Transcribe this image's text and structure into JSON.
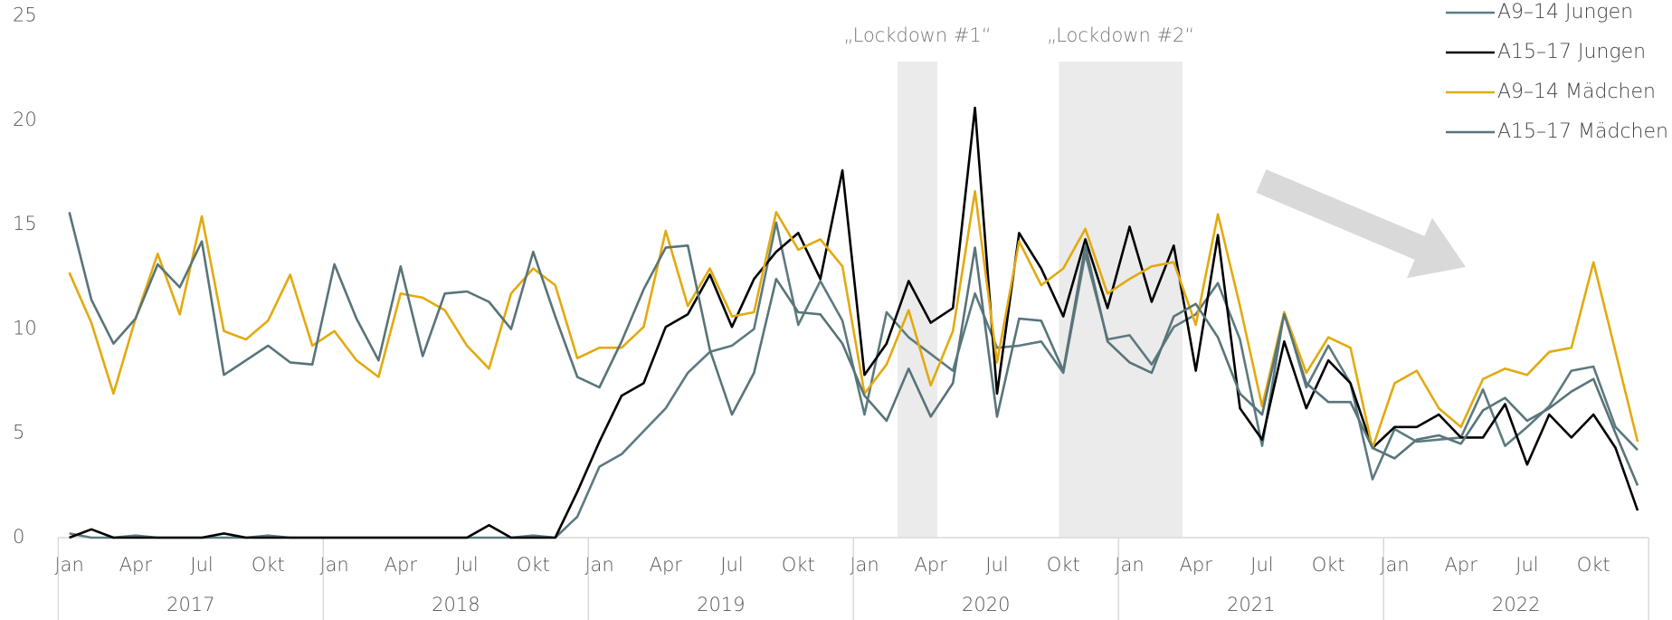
{
  "chart_data": {
    "type": "line",
    "categories": [
      "Jan",
      null,
      null,
      "Apr",
      null,
      null,
      "Jul",
      null,
      null,
      "Okt",
      null,
      null,
      "Jan",
      null,
      null,
      "Apr",
      null,
      null,
      "Jul",
      null,
      null,
      "Okt",
      null,
      null,
      "Jan",
      null,
      null,
      "Apr",
      null,
      null,
      "Jul",
      null,
      null,
      "Okt",
      null,
      null,
      "Jan",
      null,
      null,
      "Apr",
      null,
      null,
      "Jul",
      null,
      null,
      "Okt",
      null,
      null,
      "Jan",
      null,
      null,
      "Apr",
      null,
      null,
      "Jul",
      null,
      null,
      "Okt",
      null,
      null,
      "Jan",
      null,
      null,
      "Apr",
      null,
      null,
      "Jul",
      null,
      null,
      "Okt",
      null,
      null
    ],
    "category_groups": [
      "2017",
      "2018",
      "2019",
      "2020",
      "2021",
      "2022"
    ],
    "ylim": [
      0,
      25
    ],
    "yticks": [
      0,
      5,
      10,
      15,
      20,
      25
    ],
    "grid": false,
    "legend": "top-right",
    "shaded_spans": [
      {
        "label": "„Lockdown #1“",
        "x": [
          37.5,
          39.3
        ]
      },
      {
        "label": "„Lockdown #2“",
        "x": [
          44.8,
          50.4
        ]
      }
    ],
    "series": [
      {
        "name": "A9–14 Jungen",
        "color": "#5b7a80",
        "values": [
          0.2,
          0,
          0,
          0.1,
          0,
          0,
          0,
          0,
          0,
          0.1,
          0,
          0,
          0,
          0,
          0,
          0,
          0,
          0,
          0,
          0,
          0,
          0.1,
          0,
          1.0,
          3.4,
          4.0,
          5.1,
          6.2,
          7.9,
          8.9,
          9.2,
          10.0,
          15.1,
          10.2,
          12.3,
          10.4,
          5.9,
          10.8,
          9.6,
          8.8,
          8.0,
          11.7,
          9.1,
          9.2,
          9.4,
          7.9,
          13.6,
          9.5,
          9.7,
          8.3,
          10.1,
          10.7,
          12.2,
          9.5,
          4.4,
          10.8,
          7.2,
          9.2,
          7.4,
          2.8,
          5.2,
          4.6,
          4.7,
          4.8,
          7.1,
          4.4,
          5.3,
          6.3,
          8.0,
          8.2,
          5.3,
          4.2
        ]
      },
      {
        "name": "A15–17 Jungen",
        "color": "#000000",
        "values": [
          0,
          0.4,
          0,
          0,
          0,
          0,
          0,
          0.2,
          0,
          0,
          0,
          0,
          0,
          0,
          0,
          0,
          0,
          0,
          0,
          0.6,
          0,
          0,
          0,
          2.2,
          4.6,
          6.8,
          7.4,
          10.1,
          10.7,
          12.6,
          10.1,
          12.4,
          13.7,
          14.6,
          12.4,
          17.6,
          7.8,
          9.3,
          12.3,
          10.3,
          11.0,
          20.6,
          6.9,
          14.6,
          12.9,
          10.6,
          14.3,
          11.0,
          14.9,
          11.3,
          14.0,
          8.0,
          14.5,
          6.2,
          4.7,
          9.4,
          6.2,
          8.5,
          7.4,
          4.3,
          5.3,
          5.3,
          5.9,
          4.8,
          4.8,
          6.4,
          3.5,
          5.9,
          4.8,
          5.9,
          4.3,
          1.3
        ]
      },
      {
        "name": "A9–14 Mädchen",
        "color": "#e2aa0f",
        "values": [
          12.7,
          10.3,
          6.9,
          10.5,
          13.6,
          10.7,
          15.4,
          9.9,
          9.5,
          10.4,
          12.6,
          9.2,
          9.9,
          8.5,
          7.7,
          11.7,
          11.5,
          10.9,
          9.2,
          8.1,
          11.7,
          12.9,
          12.1,
          8.6,
          9.1,
          9.1,
          10.1,
          14.7,
          11.1,
          12.9,
          10.6,
          10.8,
          15.6,
          13.8,
          14.3,
          13.0,
          6.9,
          8.3,
          10.9,
          7.3,
          9.9,
          16.6,
          8.4,
          14.2,
          12.1,
          12.9,
          14.8,
          11.7,
          12.4,
          13.0,
          13.2,
          10.2,
          15.5,
          11.1,
          6.3,
          10.8,
          7.9,
          9.6,
          9.1,
          4.3,
          7.4,
          8.0,
          6.2,
          5.3,
          7.6,
          8.1,
          7.8,
          8.9,
          9.1,
          13.2,
          8.9,
          4.6
        ]
      },
      {
        "name": "A15–17 Mädchen",
        "color": "#587479",
        "values": [
          15.6,
          11.4,
          9.3,
          10.5,
          13.1,
          12.0,
          14.2,
          7.8,
          8.5,
          9.2,
          8.4,
          8.3,
          13.1,
          10.5,
          8.5,
          13.0,
          8.7,
          11.7,
          11.8,
          11.3,
          10.0,
          13.7,
          10.6,
          7.7,
          7.2,
          9.4,
          11.9,
          13.9,
          14.0,
          9.0,
          5.9,
          7.9,
          12.4,
          10.8,
          10.7,
          9.3,
          6.8,
          5.6,
          8.1,
          5.8,
          7.4,
          13.9,
          5.8,
          10.5,
          10.4,
          8.0,
          14.0,
          9.4,
          8.4,
          7.9,
          10.6,
          11.2,
          9.6,
          6.9,
          5.9,
          10.7,
          7.4,
          6.5,
          6.5,
          4.3,
          3.8,
          4.7,
          4.9,
          4.5,
          6.1,
          6.7,
          5.6,
          6.2,
          7.0,
          7.6,
          5.0,
          2.5
        ]
      }
    ]
  }
}
